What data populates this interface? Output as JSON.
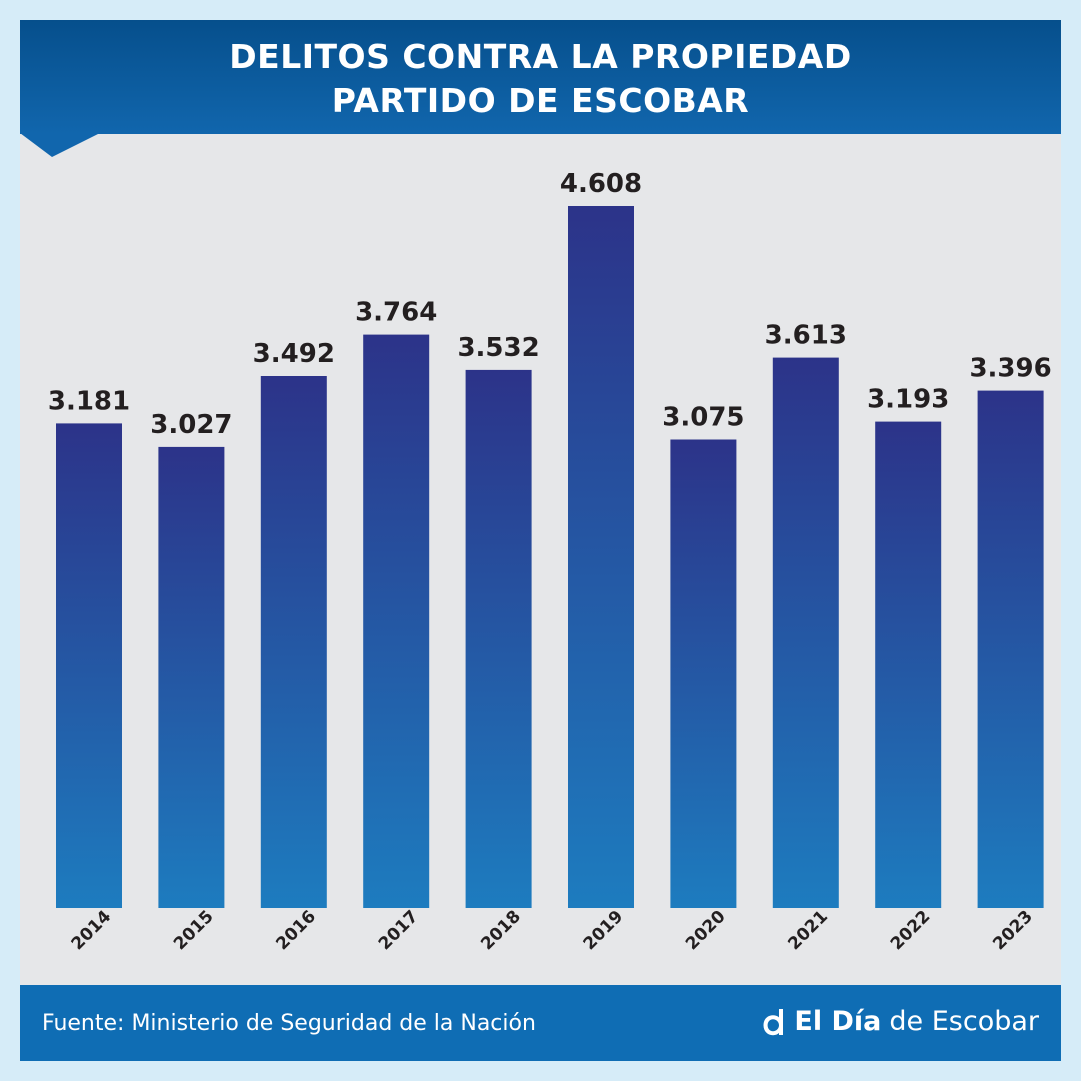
{
  "header": {
    "title_line1": "DELITOS CONTRA LA PROPIEDAD",
    "title_line2": "PARTIDO DE ESCOBAR"
  },
  "chart_data": {
    "type": "bar",
    "title": "DELITOS CONTRA LA PROPIEDAD PARTIDO DE ESCOBAR",
    "xlabel": "",
    "ylabel": "",
    "categories": [
      "2014",
      "2015",
      "2016",
      "2017",
      "2018",
      "2019",
      "2020",
      "2021",
      "2022",
      "2023"
    ],
    "values": [
      3181,
      3027,
      3492,
      3764,
      3532,
      4608,
      3075,
      3613,
      3193,
      3396
    ],
    "value_labels": [
      "3.181",
      "3.027",
      "3.492",
      "3.764",
      "3.532",
      "4.608",
      "3.075",
      "3.613",
      "3.193",
      "3.396"
    ],
    "ylim": [
      0,
      4608
    ],
    "grid": false,
    "legend": "none"
  },
  "colors": {
    "page_bg": "#d6ecf8",
    "panel_bg": "#e6e7e9",
    "header": "#0a5a9c",
    "bar_top": "#2c3389",
    "bar_bottom": "#1d7cbf",
    "label_text": "#231f20",
    "footer": "#0f6db4"
  },
  "footer": {
    "source": "Fuente: Ministerio de Seguridad de la Nación",
    "brand_icon": "d-logo-icon",
    "brand_strong": "El Día",
    "brand_rest": "de Escobar"
  }
}
